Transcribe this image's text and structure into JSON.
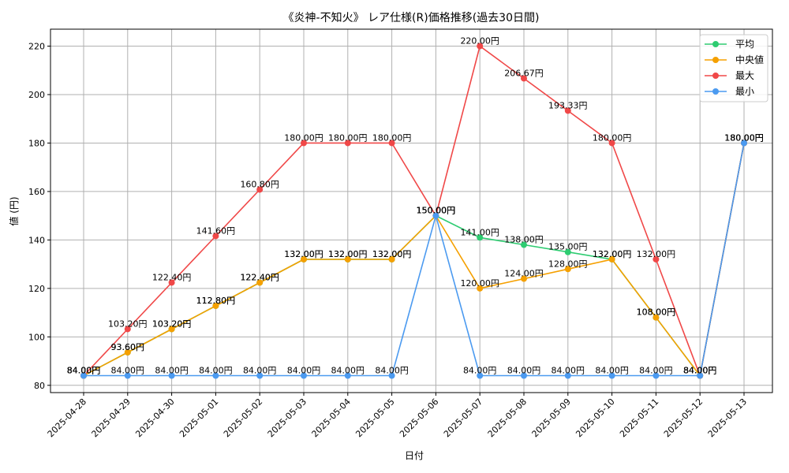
{
  "chart_data": {
    "type": "line",
    "title": "《炎神-不知火》 レア仕様(R)価格推移(過去30日間)",
    "xlabel": "日付",
    "ylabel": "値 (円)",
    "ylim": [
      77,
      227
    ],
    "yticks": [
      80,
      100,
      120,
      140,
      160,
      180,
      200,
      220
    ],
    "grid": true,
    "legend_position": "top-right",
    "label_suffix": "円",
    "categories": [
      "2025-04-28",
      "2025-04-29",
      "2025-04-30",
      "2025-05-01",
      "2025-05-02",
      "2025-05-03",
      "2025-05-04",
      "2025-05-05",
      "2025-05-06",
      "2025-05-07",
      "2025-05-08",
      "2025-05-09",
      "2025-05-10",
      "2025-05-11",
      "2025-05-12",
      "2025-05-13"
    ],
    "series": [
      {
        "name": "平均",
        "color": "#2ecc71",
        "values": [
          84.0,
          93.6,
          103.2,
          112.8,
          122.4,
          132.0,
          132.0,
          132.0,
          150.0,
          141.0,
          138.0,
          135.0,
          132.0,
          108.0,
          84.0,
          180.0
        ]
      },
      {
        "name": "中央値",
        "color": "#f5a000",
        "values": [
          84.0,
          93.6,
          103.2,
          112.8,
          122.4,
          132.0,
          132.0,
          132.0,
          150.0,
          120.0,
          124.0,
          128.0,
          132.0,
          108.0,
          84.0,
          180.0
        ]
      },
      {
        "name": "最大",
        "color": "#f04848",
        "values": [
          84.0,
          103.2,
          122.4,
          141.6,
          160.8,
          180.0,
          180.0,
          180.0,
          150.0,
          220.0,
          206.67,
          193.33,
          180.0,
          132.0,
          84.0,
          180.0
        ]
      },
      {
        "name": "最小",
        "color": "#4b9af0",
        "values": [
          84.0,
          84.0,
          84.0,
          84.0,
          84.0,
          84.0,
          84.0,
          84.0,
          150.0,
          84.0,
          84.0,
          84.0,
          84.0,
          84.0,
          84.0,
          180.0
        ]
      }
    ]
  }
}
